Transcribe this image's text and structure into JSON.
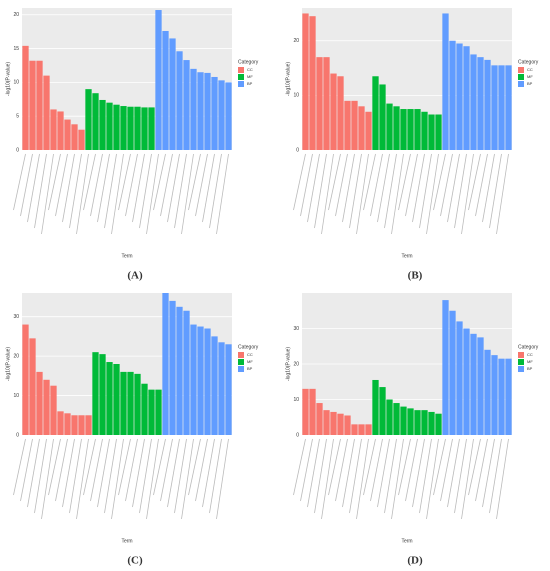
{
  "chart_data": [
    {
      "type": "bar",
      "caption": "(A)",
      "ylabel": "-log10(P-value)",
      "xlabel": "Term",
      "legend_title": "Category",
      "ylim": [
        0,
        21
      ],
      "yticks": [
        0,
        5,
        10,
        15,
        20
      ],
      "grid": true,
      "series": [
        {
          "name": "CC",
          "color": "#F8766D",
          "values": [
            15.4,
            13.2,
            13.2,
            11,
            6,
            5.7,
            4.5,
            3.8,
            3.0
          ]
        },
        {
          "name": "MF",
          "color": "#00BA38",
          "values": [
            9.0,
            8.4,
            7.4,
            7.0,
            6.7,
            6.5,
            6.4,
            6.4,
            6.3,
            6.3
          ]
        },
        {
          "name": "BP",
          "color": "#619CFF",
          "values": [
            20.7,
            17.6,
            16.5,
            14.6,
            13.3,
            12,
            11.5,
            11.4,
            10.8,
            10.3,
            10
          ]
        }
      ]
    },
    {
      "type": "bar",
      "caption": "(B)",
      "ylabel": "-log10(P-value)",
      "xlabel": "Term",
      "legend_title": "Category",
      "ylim": [
        0,
        26
      ],
      "yticks": [
        0,
        10,
        20
      ],
      "grid": true,
      "series": [
        {
          "name": "CC",
          "color": "#F8766D",
          "values": [
            25,
            24.5,
            17,
            17,
            14,
            13.5,
            9,
            9,
            8,
            7
          ]
        },
        {
          "name": "MF",
          "color": "#00BA38",
          "values": [
            13.5,
            12,
            8.5,
            8,
            7.5,
            7.5,
            7.5,
            7,
            6.5,
            6.5
          ]
        },
        {
          "name": "BP",
          "color": "#619CFF",
          "values": [
            25,
            20,
            19.5,
            19,
            17.5,
            17,
            16.5,
            15.5,
            15.5,
            15.5
          ]
        }
      ]
    },
    {
      "type": "bar",
      "caption": "(C)",
      "ylabel": "-log10(P-value)",
      "xlabel": "Term",
      "legend_title": "Category",
      "ylim": [
        0,
        36
      ],
      "yticks": [
        0,
        10,
        20,
        30
      ],
      "grid": true,
      "series": [
        {
          "name": "CC",
          "color": "#F8766D",
          "values": [
            28,
            24.5,
            16,
            14,
            12.5,
            6,
            5.5,
            5,
            5,
            5
          ]
        },
        {
          "name": "MF",
          "color": "#00BA38",
          "values": [
            21,
            20.5,
            18.5,
            18,
            16,
            16,
            15.5,
            13,
            11.5,
            11.5
          ]
        },
        {
          "name": "BP",
          "color": "#619CFF",
          "values": [
            36,
            34,
            32.5,
            31.5,
            28,
            27.5,
            27,
            25,
            23.5,
            23
          ]
        }
      ]
    },
    {
      "type": "bar",
      "caption": "(D)",
      "ylabel": "-log10(P-value)",
      "xlabel": "Term",
      "legend_title": "Category",
      "ylim": [
        0,
        40
      ],
      "yticks": [
        0,
        10,
        20,
        30
      ],
      "grid": true,
      "series": [
        {
          "name": "CC",
          "color": "#F8766D",
          "values": [
            13,
            13,
            9,
            7,
            6.5,
            6,
            5.5,
            3,
            3,
            3
          ]
        },
        {
          "name": "MF",
          "color": "#00BA38",
          "values": [
            15.5,
            13.5,
            10,
            9,
            8,
            7.5,
            7,
            7,
            6.5,
            6
          ]
        },
        {
          "name": "BP",
          "color": "#619CFF",
          "values": [
            38,
            35,
            32,
            30,
            28.5,
            27.5,
            24,
            22.5,
            21.5,
            21.5
          ]
        }
      ]
    }
  ]
}
